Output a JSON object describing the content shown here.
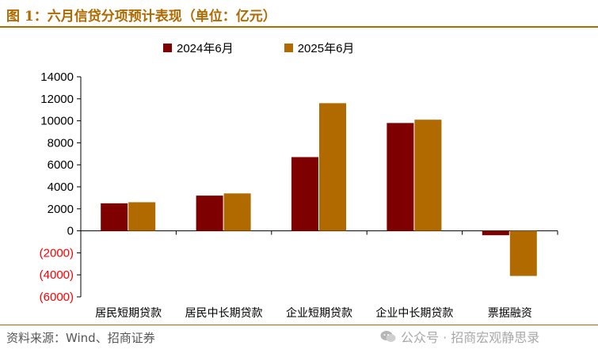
{
  "header": {
    "title": "图 1：六月信贷分项预计表现（单位：亿元）"
  },
  "chart_data": {
    "type": "bar",
    "title": "六月信贷分项预计表现（单位：亿元）",
    "categories": [
      "居民短期贷款",
      "居民中长期贷款",
      "企业短期贷款",
      "企业中长期贷款",
      "票据融资"
    ],
    "series": [
      {
        "name": "2024年6月",
        "color": "#7f0000",
        "values": [
          2500,
          3200,
          6700,
          9800,
          -400
        ]
      },
      {
        "name": "2025年6月",
        "color": "#b06a00",
        "values": [
          2600,
          3400,
          11600,
          10100,
          -4100
        ]
      }
    ],
    "ylim": [
      -6000,
      14000
    ],
    "yticks": [
      14000,
      12000,
      10000,
      8000,
      6000,
      4000,
      2000,
      0,
      -2000,
      -4000,
      -6000
    ],
    "ytick_labels": [
      "14000",
      "12000",
      "10000",
      "8000",
      "6000",
      "4000",
      "2000",
      "0",
      "(2000)",
      "(4000)",
      "(6000)"
    ],
    "negative_label_color": "#ff0000",
    "xlabel": "",
    "ylabel": "",
    "legend": "top-center"
  },
  "footer": {
    "source": "资料来源：Wind、招商证券",
    "watermark": "公众号 · 招商宏观静思录"
  }
}
